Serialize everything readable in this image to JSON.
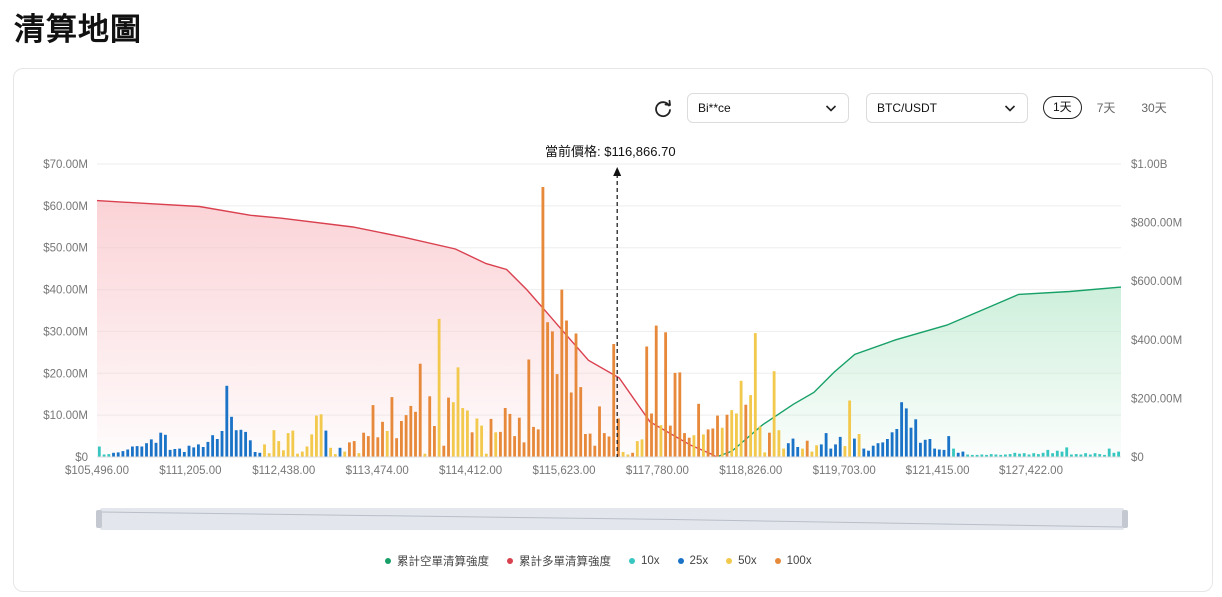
{
  "page": {
    "title": "清算地圖"
  },
  "controls": {
    "exchange": "Bi**ce",
    "pair": "BTC/USDT",
    "ranges": [
      "1天",
      "7天",
      "30天"
    ],
    "active_range": "1天"
  },
  "colors": {
    "long_line": "#d9414f",
    "long_fill": "#f9c4c9",
    "short_line": "#17a067",
    "short_fill": "#bdeacf",
    "lev10": "#38c7c0",
    "lev25": "#1a73c7",
    "lev50": "#f2c94c",
    "lev100": "#e7893a"
  },
  "chart_data": {
    "type": "bar",
    "current_price_label": "當前價格: $116,866.70",
    "current_price": 116866.7,
    "x_tick_labels": [
      "$105,496.00",
      "$111,205.00",
      "$112,438.00",
      "$113,474.00",
      "$114,412.00",
      "$115,623.00",
      "$117,780.00",
      "$118,826.00",
      "$119,703.00",
      "$121,415.00",
      "$127,422.00"
    ],
    "left_axis": {
      "labels": [
        "$0",
        "$10.00M",
        "$20.00M",
        "$30.00M",
        "$40.00M",
        "$50.00M",
        "$60.00M",
        "$70.00M"
      ],
      "ylim": [
        0,
        70
      ]
    },
    "right_axis": {
      "labels": [
        "$0",
        "$200.00M",
        "$400.00M",
        "$600.00M",
        "$800.00M",
        "$1.00B"
      ],
      "ylim": [
        0,
        1000
      ]
    },
    "legend": [
      {
        "name": "累計空單清算強度",
        "color": "#17a067"
      },
      {
        "name": "累計多單清算強度",
        "color": "#d9414f"
      },
      {
        "name": "10x",
        "color": "#38c7c0"
      },
      {
        "name": "25x",
        "color": "#1a73c7"
      },
      {
        "name": "50x",
        "color": "#f2c94c"
      },
      {
        "name": "100x",
        "color": "#e7893a"
      }
    ],
    "bars": [
      {
        "v": 2.5,
        "lev": "10x"
      },
      {
        "v": 0.6,
        "lev": "10x"
      },
      {
        "v": 0.7,
        "lev": "10x"
      },
      {
        "v": 1.0,
        "lev": "25x"
      },
      {
        "v": 1.1,
        "lev": "25x"
      },
      {
        "v": 1.4,
        "lev": "25x"
      },
      {
        "v": 1.8,
        "lev": "25x"
      },
      {
        "v": 2.5,
        "lev": "25x"
      },
      {
        "v": 2.6,
        "lev": "25x"
      },
      {
        "v": 2.5,
        "lev": "25x"
      },
      {
        "v": 3.3,
        "lev": "25x"
      },
      {
        "v": 4.2,
        "lev": "25x"
      },
      {
        "v": 3.4,
        "lev": "25x"
      },
      {
        "v": 5.8,
        "lev": "25x"
      },
      {
        "v": 5.3,
        "lev": "25x"
      },
      {
        "v": 1.7,
        "lev": "25x"
      },
      {
        "v": 1.9,
        "lev": "25x"
      },
      {
        "v": 2.0,
        "lev": "25x"
      },
      {
        "v": 1.2,
        "lev": "25x"
      },
      {
        "v": 2.7,
        "lev": "25x"
      },
      {
        "v": 2.3,
        "lev": "25x"
      },
      {
        "v": 3.0,
        "lev": "25x"
      },
      {
        "v": 2.4,
        "lev": "25x"
      },
      {
        "v": 3.6,
        "lev": "25x"
      },
      {
        "v": 5.2,
        "lev": "25x"
      },
      {
        "v": 4.3,
        "lev": "25x"
      },
      {
        "v": 6.2,
        "lev": "25x"
      },
      {
        "v": 17.0,
        "lev": "25x"
      },
      {
        "v": 9.6,
        "lev": "25x"
      },
      {
        "v": 6.4,
        "lev": "25x"
      },
      {
        "v": 6.5,
        "lev": "25x"
      },
      {
        "v": 6.0,
        "lev": "25x"
      },
      {
        "v": 4.0,
        "lev": "25x"
      },
      {
        "v": 1.2,
        "lev": "25x"
      },
      {
        "v": 1.0,
        "lev": "25x"
      },
      {
        "v": 3.0,
        "lev": "50x"
      },
      {
        "v": 0.9,
        "lev": "50x"
      },
      {
        "v": 6.4,
        "lev": "50x"
      },
      {
        "v": 3.8,
        "lev": "50x"
      },
      {
        "v": 1.6,
        "lev": "50x"
      },
      {
        "v": 5.7,
        "lev": "50x"
      },
      {
        "v": 6.3,
        "lev": "50x"
      },
      {
        "v": 0.8,
        "lev": "50x"
      },
      {
        "v": 1.3,
        "lev": "50x"
      },
      {
        "v": 2.5,
        "lev": "50x"
      },
      {
        "v": 5.4,
        "lev": "50x"
      },
      {
        "v": 9.9,
        "lev": "50x"
      },
      {
        "v": 10.2,
        "lev": "50x"
      },
      {
        "v": 6.3,
        "lev": "25x"
      },
      {
        "v": 2.2,
        "lev": "50x"
      },
      {
        "v": 0.7,
        "lev": "50x"
      },
      {
        "v": 2.2,
        "lev": "25x"
      },
      {
        "v": 1.3,
        "lev": "50x"
      },
      {
        "v": 3.5,
        "lev": "100x"
      },
      {
        "v": 3.8,
        "lev": "100x"
      },
      {
        "v": 0.9,
        "lev": "50x"
      },
      {
        "v": 5.8,
        "lev": "100x"
      },
      {
        "v": 5.0,
        "lev": "100x"
      },
      {
        "v": 12.4,
        "lev": "100x"
      },
      {
        "v": 4.7,
        "lev": "100x"
      },
      {
        "v": 8.4,
        "lev": "100x"
      },
      {
        "v": 6.2,
        "lev": "50x"
      },
      {
        "v": 14.3,
        "lev": "100x"
      },
      {
        "v": 4.5,
        "lev": "100x"
      },
      {
        "v": 8.6,
        "lev": "100x"
      },
      {
        "v": 10.0,
        "lev": "100x"
      },
      {
        "v": 12.2,
        "lev": "100x"
      },
      {
        "v": 10.8,
        "lev": "100x"
      },
      {
        "v": 22.3,
        "lev": "100x"
      },
      {
        "v": 0.8,
        "lev": "50x"
      },
      {
        "v": 14.5,
        "lev": "100x"
      },
      {
        "v": 7.4,
        "lev": "100x"
      },
      {
        "v": 33.0,
        "lev": "50x"
      },
      {
        "v": 2.7,
        "lev": "100x"
      },
      {
        "v": 14.2,
        "lev": "100x"
      },
      {
        "v": 13.1,
        "lev": "50x"
      },
      {
        "v": 21.4,
        "lev": "50x"
      },
      {
        "v": 11.7,
        "lev": "50x"
      },
      {
        "v": 11.1,
        "lev": "50x"
      },
      {
        "v": 5.9,
        "lev": "100x"
      },
      {
        "v": 9.2,
        "lev": "50x"
      },
      {
        "v": 7.5,
        "lev": "50x"
      },
      {
        "v": 0.8,
        "lev": "50x"
      },
      {
        "v": 9.1,
        "lev": "100x"
      },
      {
        "v": 5.9,
        "lev": "50x"
      },
      {
        "v": 6.0,
        "lev": "100x"
      },
      {
        "v": 11.7,
        "lev": "100x"
      },
      {
        "v": 10.3,
        "lev": "100x"
      },
      {
        "v": 5.0,
        "lev": "100x"
      },
      {
        "v": 9.4,
        "lev": "100x"
      },
      {
        "v": 3.5,
        "lev": "100x"
      },
      {
        "v": 23.3,
        "lev": "100x"
      },
      {
        "v": 7.2,
        "lev": "100x"
      },
      {
        "v": 6.6,
        "lev": "100x"
      },
      {
        "v": 64.5,
        "lev": "100x"
      },
      {
        "v": 32.2,
        "lev": "100x"
      },
      {
        "v": 30.0,
        "lev": "100x"
      },
      {
        "v": 19.8,
        "lev": "100x"
      },
      {
        "v": 40.0,
        "lev": "100x"
      },
      {
        "v": 32.6,
        "lev": "100x"
      },
      {
        "v": 15.4,
        "lev": "100x"
      },
      {
        "v": 29.5,
        "lev": "100x"
      },
      {
        "v": 16.7,
        "lev": "100x"
      },
      {
        "v": 5.5,
        "lev": "100x"
      },
      {
        "v": 5.6,
        "lev": "100x"
      },
      {
        "v": 2.7,
        "lev": "100x"
      },
      {
        "v": 12.1,
        "lev": "100x"
      },
      {
        "v": 5.7,
        "lev": "100x"
      },
      {
        "v": 4.9,
        "lev": "100x"
      },
      {
        "v": 27.0,
        "lev": "100x"
      },
      {
        "v": 9.2,
        "lev": "100x"
      },
      {
        "v": 1.2,
        "lev": "50x"
      },
      {
        "v": 0.6,
        "lev": "50x"
      },
      {
        "v": 1.0,
        "lev": "100x"
      },
      {
        "v": 3.8,
        "lev": "50x"
      },
      {
        "v": 4.2,
        "lev": "50x"
      },
      {
        "v": 26.4,
        "lev": "100x"
      },
      {
        "v": 10.4,
        "lev": "100x"
      },
      {
        "v": 31.4,
        "lev": "100x"
      },
      {
        "v": 7.6,
        "lev": "50x"
      },
      {
        "v": 29.8,
        "lev": "100x"
      },
      {
        "v": 7.5,
        "lev": "100x"
      },
      {
        "v": 20.1,
        "lev": "100x"
      },
      {
        "v": 20.2,
        "lev": "100x"
      },
      {
        "v": 5.7,
        "lev": "100x"
      },
      {
        "v": 4.6,
        "lev": "100x"
      },
      {
        "v": 5.2,
        "lev": "50x"
      },
      {
        "v": 12.7,
        "lev": "100x"
      },
      {
        "v": 5.4,
        "lev": "50x"
      },
      {
        "v": 6.6,
        "lev": "100x"
      },
      {
        "v": 6.8,
        "lev": "100x"
      },
      {
        "v": 9.9,
        "lev": "100x"
      },
      {
        "v": 7.0,
        "lev": "50x"
      },
      {
        "v": 10.1,
        "lev": "100x"
      },
      {
        "v": 11.2,
        "lev": "50x"
      },
      {
        "v": 10.4,
        "lev": "50x"
      },
      {
        "v": 18.2,
        "lev": "50x"
      },
      {
        "v": 12.5,
        "lev": "100x"
      },
      {
        "v": 14.8,
        "lev": "50x"
      },
      {
        "v": 29.6,
        "lev": "50x"
      },
      {
        "v": 7.3,
        "lev": "50x"
      },
      {
        "v": 1.1,
        "lev": "50x"
      },
      {
        "v": 5.8,
        "lev": "100x"
      },
      {
        "v": 20.5,
        "lev": "50x"
      },
      {
        "v": 6.4,
        "lev": "50x"
      },
      {
        "v": 2.0,
        "lev": "50x"
      },
      {
        "v": 3.3,
        "lev": "25x"
      },
      {
        "v": 4.4,
        "lev": "25x"
      },
      {
        "v": 2.4,
        "lev": "25x"
      },
      {
        "v": 2.0,
        "lev": "50x"
      },
      {
        "v": 3.9,
        "lev": "100x"
      },
      {
        "v": 1.3,
        "lev": "50x"
      },
      {
        "v": 2.8,
        "lev": "50x"
      },
      {
        "v": 3.0,
        "lev": "25x"
      },
      {
        "v": 5.7,
        "lev": "25x"
      },
      {
        "v": 2.0,
        "lev": "25x"
      },
      {
        "v": 3.0,
        "lev": "25x"
      },
      {
        "v": 4.8,
        "lev": "25x"
      },
      {
        "v": 2.6,
        "lev": "50x"
      },
      {
        "v": 13.5,
        "lev": "50x"
      },
      {
        "v": 4.4,
        "lev": "25x"
      },
      {
        "v": 5.5,
        "lev": "50x"
      },
      {
        "v": 2.0,
        "lev": "25x"
      },
      {
        "v": 1.5,
        "lev": "25x"
      },
      {
        "v": 2.7,
        "lev": "25x"
      },
      {
        "v": 3.3,
        "lev": "25x"
      },
      {
        "v": 3.5,
        "lev": "25x"
      },
      {
        "v": 4.3,
        "lev": "25x"
      },
      {
        "v": 5.9,
        "lev": "25x"
      },
      {
        "v": 6.7,
        "lev": "25x"
      },
      {
        "v": 13.1,
        "lev": "25x"
      },
      {
        "v": 11.6,
        "lev": "25x"
      },
      {
        "v": 7.0,
        "lev": "25x"
      },
      {
        "v": 9.0,
        "lev": "25x"
      },
      {
        "v": 3.4,
        "lev": "25x"
      },
      {
        "v": 4.1,
        "lev": "25x"
      },
      {
        "v": 4.3,
        "lev": "25x"
      },
      {
        "v": 2.0,
        "lev": "25x"
      },
      {
        "v": 1.8,
        "lev": "25x"
      },
      {
        "v": 1.7,
        "lev": "25x"
      },
      {
        "v": 5.0,
        "lev": "25x"
      },
      {
        "v": 2.0,
        "lev": "10x"
      },
      {
        "v": 1.0,
        "lev": "25x"
      },
      {
        "v": 1.3,
        "lev": "25x"
      },
      {
        "v": 0.6,
        "lev": "10x"
      },
      {
        "v": 0.5,
        "lev": "10x"
      },
      {
        "v": 0.5,
        "lev": "10x"
      },
      {
        "v": 0.6,
        "lev": "10x"
      },
      {
        "v": 0.5,
        "lev": "10x"
      },
      {
        "v": 0.7,
        "lev": "10x"
      },
      {
        "v": 0.6,
        "lev": "10x"
      },
      {
        "v": 0.5,
        "lev": "10x"
      },
      {
        "v": 0.6,
        "lev": "10x"
      },
      {
        "v": 0.7,
        "lev": "10x"
      },
      {
        "v": 1.0,
        "lev": "10x"
      },
      {
        "v": 0.8,
        "lev": "10x"
      },
      {
        "v": 0.9,
        "lev": "10x"
      },
      {
        "v": 0.6,
        "lev": "10x"
      },
      {
        "v": 0.9,
        "lev": "10x"
      },
      {
        "v": 0.7,
        "lev": "10x"
      },
      {
        "v": 1.0,
        "lev": "10x"
      },
      {
        "v": 1.7,
        "lev": "10x"
      },
      {
        "v": 0.9,
        "lev": "10x"
      },
      {
        "v": 1.5,
        "lev": "10x"
      },
      {
        "v": 1.3,
        "lev": "10x"
      },
      {
        "v": 2.3,
        "lev": "10x"
      },
      {
        "v": 0.6,
        "lev": "10x"
      },
      {
        "v": 0.7,
        "lev": "10x"
      },
      {
        "v": 0.6,
        "lev": "10x"
      },
      {
        "v": 0.9,
        "lev": "10x"
      },
      {
        "v": 0.6,
        "lev": "10x"
      },
      {
        "v": 0.9,
        "lev": "10x"
      },
      {
        "v": 0.7,
        "lev": "10x"
      },
      {
        "v": 0.5,
        "lev": "10x"
      },
      {
        "v": 2.0,
        "lev": "10x"
      },
      {
        "v": 1.0,
        "lev": "10x"
      },
      {
        "v": 1.3,
        "lev": "10x"
      }
    ],
    "cumulative_long": [
      [
        0,
        875
      ],
      [
        0.05,
        865
      ],
      [
        0.1,
        855
      ],
      [
        0.15,
        825
      ],
      [
        0.18,
        815
      ],
      [
        0.25,
        785
      ],
      [
        0.3,
        750
      ],
      [
        0.35,
        710
      ],
      [
        0.38,
        660
      ],
      [
        0.4,
        640
      ],
      [
        0.42,
        570
      ],
      [
        0.44,
        490
      ],
      [
        0.46,
        410
      ],
      [
        0.48,
        330
      ],
      [
        0.51,
        270
      ],
      [
        0.54,
        120
      ],
      [
        0.56,
        80
      ],
      [
        0.58,
        40
      ],
      [
        0.6,
        10
      ],
      [
        0.605,
        0
      ]
    ],
    "cumulative_short": [
      [
        0.605,
        0
      ],
      [
        0.62,
        20
      ],
      [
        0.65,
        110
      ],
      [
        0.68,
        180
      ],
      [
        0.7,
        220
      ],
      [
        0.72,
        290
      ],
      [
        0.74,
        350
      ],
      [
        0.78,
        400
      ],
      [
        0.83,
        450
      ],
      [
        0.87,
        510
      ],
      [
        0.9,
        555
      ],
      [
        0.95,
        565
      ],
      [
        1.0,
        580
      ]
    ]
  }
}
